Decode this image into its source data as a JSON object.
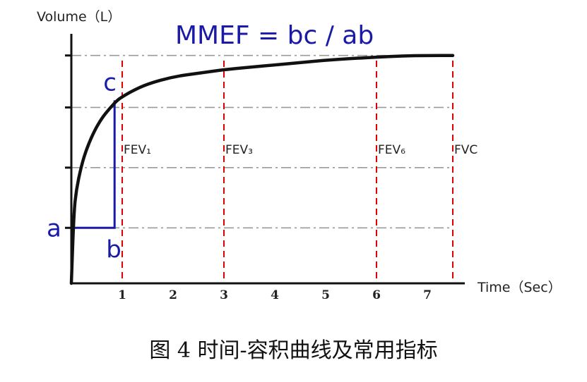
{
  "chart_data": {
    "type": "line",
    "ylabel": "Volume（L）",
    "xlabel": "Time（Sec）",
    "formula": "MMEF = bc / ab",
    "x_ticks": [
      "1",
      "2",
      "3",
      "4",
      "5",
      "6",
      "7"
    ],
    "xlim": [
      0,
      7.5
    ],
    "series": [
      {
        "x": [
          0,
          0.05,
          0.1,
          0.2,
          0.3,
          0.45,
          0.6,
          0.75,
          0.9,
          1.0,
          1.2,
          1.5,
          2.0,
          2.5,
          3.0,
          3.5,
          4.0,
          4.5,
          5.0,
          5.5,
          6.0,
          6.5,
          7.0,
          7.5
        ],
        "y": [
          0,
          0.3,
          0.4,
          0.5,
          0.57,
          0.645,
          0.7,
          0.74,
          0.775,
          0.79,
          0.815,
          0.845,
          0.875,
          0.89,
          0.905,
          0.915,
          0.925,
          0.935,
          0.945,
          0.952,
          0.958,
          0.963,
          0.965,
          0.965
        ]
      }
    ],
    "reference_lines": [
      {
        "label": "FEV₁",
        "x": 1
      },
      {
        "label": "FEV₃",
        "x": 3
      },
      {
        "label": "FEV₆",
        "x": 6
      },
      {
        "label": "FVC",
        "x": 7.5
      }
    ],
    "annotations": {
      "a": "a",
      "b": "b",
      "c": "c",
      "a_y": 0.235,
      "c_y": 0.775,
      "b_x": 0.85
    },
    "grid_y_levels": [
      0.235,
      0.49,
      0.745,
      0.965
    ],
    "colors": {
      "curve": "#111111",
      "axis": "#111111",
      "reference": "#e00000",
      "annotation": "#1a1aa8",
      "grid": "#9a9a9a"
    }
  },
  "caption": "图 4 时间-容积曲线及常用指标"
}
